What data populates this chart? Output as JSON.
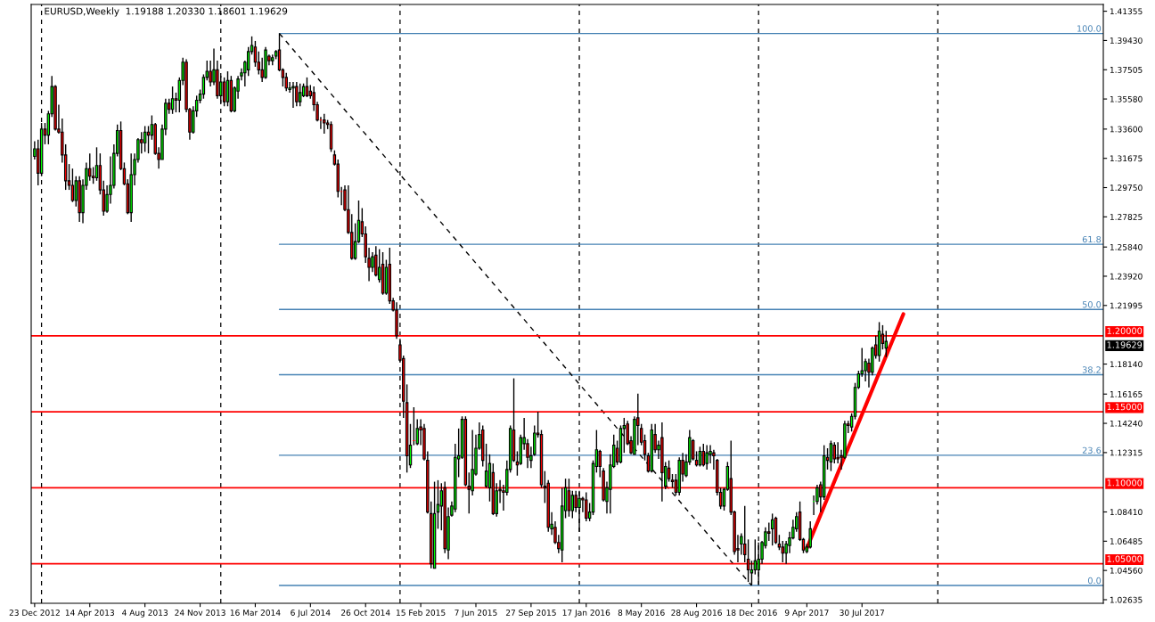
{
  "chart_data": {
    "type": "candlestick",
    "title": "EURUSD,Weekly  1.19188 1.20330 1.18601 1.19629",
    "x": [
      "2012-12-23",
      "2012-12-30",
      "2013-01-06",
      "2013-01-13",
      "2013-01-20",
      "2013-01-27",
      "2013-02-03",
      "2013-02-10",
      "2013-02-17",
      "2013-02-24",
      "2013-03-03",
      "2013-03-10",
      "2013-03-17",
      "2013-03-24",
      "2013-03-31",
      "2013-04-07",
      "2013-04-14",
      "2013-04-21",
      "2013-04-28",
      "2013-05-05",
      "2013-05-12",
      "2013-05-19",
      "2013-05-26",
      "2013-06-02",
      "2013-06-09",
      "2013-06-16",
      "2013-06-23",
      "2013-06-30",
      "2013-07-07",
      "2013-07-14",
      "2013-07-21",
      "2013-07-28",
      "2013-08-04",
      "2013-08-11",
      "2013-08-18",
      "2013-08-25",
      "2013-09-01",
      "2013-09-08",
      "2013-09-15",
      "2013-09-22",
      "2013-09-29",
      "2013-10-06",
      "2013-10-13",
      "2013-10-20",
      "2013-10-27",
      "2013-11-03",
      "2013-11-10",
      "2013-11-17",
      "2013-11-24",
      "2013-12-01",
      "2013-12-08",
      "2013-12-15",
      "2013-12-22",
      "2013-12-29",
      "2014-01-05",
      "2014-01-12",
      "2014-01-19",
      "2014-01-26",
      "2014-02-02",
      "2014-02-09",
      "2014-02-16",
      "2014-02-23",
      "2014-03-02",
      "2014-03-09",
      "2014-03-16",
      "2014-03-23",
      "2014-03-30",
      "2014-04-06",
      "2014-04-13",
      "2014-04-20",
      "2014-04-27",
      "2014-05-04",
      "2014-05-11",
      "2014-05-18",
      "2014-05-25",
      "2014-06-01",
      "2014-06-08",
      "2014-06-15",
      "2014-06-22",
      "2014-06-29",
      "2014-07-06",
      "2014-07-13",
      "2014-07-20",
      "2014-07-27",
      "2014-08-03",
      "2014-08-10",
      "2014-08-17",
      "2014-08-24",
      "2014-08-31",
      "2014-09-07",
      "2014-09-14",
      "2014-09-21",
      "2014-09-28",
      "2014-10-05",
      "2014-10-12",
      "2014-10-19",
      "2014-10-26",
      "2014-11-02",
      "2014-11-09",
      "2014-11-16",
      "2014-11-23",
      "2014-11-30",
      "2014-12-07",
      "2014-12-14",
      "2014-12-21",
      "2014-12-28",
      "2015-01-04",
      "2015-01-11",
      "2015-01-18",
      "2015-01-25",
      "2015-02-01",
      "2015-02-08",
      "2015-02-15",
      "2015-02-22",
      "2015-03-01",
      "2015-03-08",
      "2015-03-15",
      "2015-03-22",
      "2015-03-29",
      "2015-04-05",
      "2015-04-12",
      "2015-04-19",
      "2015-04-26",
      "2015-05-03",
      "2015-05-10",
      "2015-05-17",
      "2015-05-24",
      "2015-05-31",
      "2015-06-07",
      "2015-06-14",
      "2015-06-21",
      "2015-06-28",
      "2015-07-05",
      "2015-07-12",
      "2015-07-19",
      "2015-07-26",
      "2015-08-02",
      "2015-08-09",
      "2015-08-16",
      "2015-08-23",
      "2015-08-30",
      "2015-09-06",
      "2015-09-13",
      "2015-09-20",
      "2015-09-27",
      "2015-10-04",
      "2015-10-11",
      "2015-10-18",
      "2015-10-25",
      "2015-11-01",
      "2015-11-08",
      "2015-11-15",
      "2015-11-22",
      "2015-11-29",
      "2015-12-06",
      "2015-12-13",
      "2015-12-20",
      "2015-12-27",
      "2016-01-03",
      "2016-01-10",
      "2016-01-17",
      "2016-01-24",
      "2016-01-31",
      "2016-02-07",
      "2016-02-14",
      "2016-02-21",
      "2016-02-28",
      "2016-03-06",
      "2016-03-13",
      "2016-03-20",
      "2016-03-27",
      "2016-04-03",
      "2016-04-10",
      "2016-04-17",
      "2016-04-24",
      "2016-05-01",
      "2016-05-08",
      "2016-05-15",
      "2016-05-22",
      "2016-05-29",
      "2016-06-05",
      "2016-06-12",
      "2016-06-19",
      "2016-06-26",
      "2016-07-03",
      "2016-07-10",
      "2016-07-17",
      "2016-07-24",
      "2016-07-31",
      "2016-08-07",
      "2016-08-14",
      "2016-08-21",
      "2016-08-28",
      "2016-09-04",
      "2016-09-11",
      "2016-09-18",
      "2016-09-25",
      "2016-10-02",
      "2016-10-09",
      "2016-10-16",
      "2016-10-23",
      "2016-10-30",
      "2016-11-06",
      "2016-11-13",
      "2016-11-20",
      "2016-11-27",
      "2016-12-04",
      "2016-12-11",
      "2016-12-18",
      "2016-12-25",
      "2017-01-01",
      "2017-01-08",
      "2017-01-15",
      "2017-01-22",
      "2017-01-29",
      "2017-02-05",
      "2017-02-12",
      "2017-02-19",
      "2017-02-26",
      "2017-03-05",
      "2017-03-12",
      "2017-03-19",
      "2017-03-26",
      "2017-04-02",
      "2017-04-09",
      "2017-04-16",
      "2017-04-23",
      "2017-04-30",
      "2017-05-07",
      "2017-05-14",
      "2017-05-21",
      "2017-05-28",
      "2017-06-04",
      "2017-06-11",
      "2017-06-18",
      "2017-06-25",
      "2017-07-02",
      "2017-07-09",
      "2017-07-16",
      "2017-07-23",
      "2017-07-30",
      "2017-08-06",
      "2017-08-13",
      "2017-08-20",
      "2017-08-27",
      "2017-09-03",
      "2017-09-10",
      "2017-09-17"
    ],
    "ohlc": [
      [
        1.318,
        1.328,
        1.316,
        1.323
      ],
      [
        1.323,
        1.329,
        1.299,
        1.307
      ],
      [
        1.307,
        1.34,
        1.305,
        1.336
      ],
      [
        1.336,
        1.34,
        1.326,
        1.332
      ],
      [
        1.332,
        1.348,
        1.326,
        1.346
      ],
      [
        1.346,
        1.371,
        1.344,
        1.364
      ],
      [
        1.364,
        1.365,
        1.335,
        1.336
      ],
      [
        1.336,
        1.352,
        1.333,
        1.334
      ],
      [
        1.334,
        1.343,
        1.314,
        1.319
      ],
      [
        1.319,
        1.326,
        1.296,
        1.302
      ],
      [
        1.302,
        1.313,
        1.296,
        1.299
      ],
      [
        1.299,
        1.31,
        1.288,
        1.289
      ],
      [
        1.289,
        1.305,
        1.285,
        1.302
      ],
      [
        1.302,
        1.305,
        1.275,
        1.281
      ],
      [
        1.281,
        1.303,
        1.274,
        1.299
      ],
      [
        1.299,
        1.314,
        1.296,
        1.31
      ],
      [
        1.31,
        1.32,
        1.302,
        1.305
      ],
      [
        1.305,
        1.311,
        1.3,
        1.304
      ],
      [
        1.304,
        1.324,
        1.302,
        1.312
      ],
      [
        1.312,
        1.32,
        1.293,
        1.296
      ],
      [
        1.296,
        1.302,
        1.279,
        1.282
      ],
      [
        1.282,
        1.299,
        1.281,
        1.293
      ],
      [
        1.293,
        1.318,
        1.287,
        1.299
      ],
      [
        1.299,
        1.326,
        1.297,
        1.32
      ],
      [
        1.32,
        1.339,
        1.318,
        1.335
      ],
      [
        1.335,
        1.341,
        1.309,
        1.31
      ],
      [
        1.31,
        1.314,
        1.299,
        1.3
      ],
      [
        1.3,
        1.303,
        1.28,
        1.281
      ],
      [
        1.281,
        1.32,
        1.275,
        1.306
      ],
      [
        1.306,
        1.32,
        1.299,
        1.316
      ],
      [
        1.316,
        1.33,
        1.314,
        1.329
      ],
      [
        1.329,
        1.334,
        1.32,
        1.327
      ],
      [
        1.327,
        1.338,
        1.321,
        1.334
      ],
      [
        1.334,
        1.338,
        1.32,
        1.332
      ],
      [
        1.332,
        1.345,
        1.329,
        1.339
      ],
      [
        1.339,
        1.34,
        1.319,
        1.32
      ],
      [
        1.32,
        1.324,
        1.31,
        1.316
      ],
      [
        1.316,
        1.339,
        1.316,
        1.336
      ],
      [
        1.336,
        1.356,
        1.332,
        1.353
      ],
      [
        1.353,
        1.356,
        1.346,
        1.349
      ],
      [
        1.349,
        1.364,
        1.346,
        1.356
      ],
      [
        1.356,
        1.36,
        1.347,
        1.355
      ],
      [
        1.355,
        1.37,
        1.347,
        1.368
      ],
      [
        1.368,
        1.383,
        1.365,
        1.38
      ],
      [
        1.38,
        1.382,
        1.347,
        1.349
      ],
      [
        1.349,
        1.35,
        1.329,
        1.334
      ],
      [
        1.334,
        1.351,
        1.333,
        1.348
      ],
      [
        1.348,
        1.358,
        1.344,
        1.355
      ],
      [
        1.355,
        1.362,
        1.353,
        1.359
      ],
      [
        1.359,
        1.372,
        1.356,
        1.37
      ],
      [
        1.37,
        1.381,
        1.368,
        1.374
      ],
      [
        1.374,
        1.381,
        1.364,
        1.367
      ],
      [
        1.367,
        1.389,
        1.365,
        1.375
      ],
      [
        1.375,
        1.381,
        1.356,
        1.358
      ],
      [
        1.358,
        1.371,
        1.353,
        1.367
      ],
      [
        1.367,
        1.37,
        1.351,
        1.354
      ],
      [
        1.354,
        1.374,
        1.351,
        1.368
      ],
      [
        1.368,
        1.371,
        1.347,
        1.348
      ],
      [
        1.348,
        1.364,
        1.347,
        1.363
      ],
      [
        1.361,
        1.371,
        1.356,
        1.369
      ],
      [
        1.371,
        1.376,
        1.368,
        1.373
      ],
      [
        1.373,
        1.381,
        1.364,
        1.38
      ],
      [
        1.375,
        1.39,
        1.371,
        1.387
      ],
      [
        1.387,
        1.397,
        1.385,
        1.391
      ],
      [
        1.39,
        1.394,
        1.377,
        1.38
      ],
      [
        1.38,
        1.387,
        1.372,
        1.375
      ],
      [
        1.375,
        1.383,
        1.367,
        1.37
      ],
      [
        1.37,
        1.39,
        1.369,
        1.388
      ],
      [
        1.384,
        1.385,
        1.378,
        1.381
      ],
      [
        1.381,
        1.385,
        1.378,
        1.383
      ],
      [
        1.384,
        1.388,
        1.382,
        1.387
      ],
      [
        1.388,
        1.399,
        1.374,
        1.375
      ],
      [
        1.375,
        1.376,
        1.364,
        1.37
      ],
      [
        1.37,
        1.373,
        1.361,
        1.363
      ],
      [
        1.362,
        1.367,
        1.36,
        1.363
      ],
      [
        1.363,
        1.367,
        1.35,
        1.364
      ],
      [
        1.364,
        1.367,
        1.351,
        1.354
      ],
      [
        1.354,
        1.366,
        1.351,
        1.36
      ],
      [
        1.358,
        1.366,
        1.357,
        1.364
      ],
      [
        1.364,
        1.37,
        1.357,
        1.358
      ],
      [
        1.361,
        1.365,
        1.356,
        1.358
      ],
      [
        1.36,
        1.364,
        1.348,
        1.352
      ],
      [
        1.352,
        1.354,
        1.341,
        1.342
      ],
      [
        1.342,
        1.344,
        1.336,
        1.342
      ],
      [
        1.342,
        1.346,
        1.333,
        1.34
      ],
      [
        1.34,
        1.342,
        1.336,
        1.339
      ],
      [
        1.339,
        1.341,
        1.321,
        1.323
      ],
      [
        1.319,
        1.322,
        1.312,
        1.313
      ],
      [
        1.313,
        1.316,
        1.291,
        1.295
      ],
      [
        1.295,
        1.298,
        1.286,
        1.295
      ],
      [
        1.296,
        1.299,
        1.282,
        1.283
      ],
      [
        1.283,
        1.299,
        1.267,
        1.268
      ],
      [
        1.268,
        1.28,
        1.25,
        1.251
      ],
      [
        1.251,
        1.274,
        1.25,
        1.262
      ],
      [
        1.262,
        1.289,
        1.261,
        1.276
      ],
      [
        1.275,
        1.284,
        1.265,
        1.267
      ],
      [
        1.267,
        1.272,
        1.248,
        1.252
      ],
      [
        1.251,
        1.258,
        1.236,
        1.245
      ],
      [
        1.245,
        1.255,
        1.242,
        1.252
      ],
      [
        1.253,
        1.259,
        1.239,
        1.24
      ],
      [
        1.237,
        1.257,
        1.235,
        1.245
      ],
      [
        1.247,
        1.255,
        1.227,
        1.228
      ],
      [
        1.228,
        1.25,
        1.227,
        1.245
      ],
      [
        1.247,
        1.258,
        1.221,
        1.223
      ],
      [
        1.223,
        1.225,
        1.216,
        1.217
      ],
      [
        1.217,
        1.222,
        1.198,
        1.2
      ],
      [
        1.194,
        1.198,
        1.183,
        1.184
      ],
      [
        1.185,
        1.187,
        1.146,
        1.157
      ],
      [
        1.156,
        1.168,
        1.11,
        1.121
      ],
      [
        1.115,
        1.142,
        1.113,
        1.128
      ],
      [
        1.131,
        1.153,
        1.128,
        1.131
      ],
      [
        1.129,
        1.145,
        1.128,
        1.139
      ],
      [
        1.14,
        1.145,
        1.128,
        1.138
      ],
      [
        1.139,
        1.142,
        1.118,
        1.119
      ],
      [
        1.118,
        1.124,
        1.083,
        1.084
      ],
      [
        1.083,
        1.091,
        1.047,
        1.05
      ],
      [
        1.047,
        1.104,
        1.047,
        1.083
      ],
      [
        1.084,
        1.105,
        1.073,
        1.089
      ],
      [
        1.088,
        1.103,
        1.072,
        1.098
      ],
      [
        1.1,
        1.104,
        1.057,
        1.06
      ],
      [
        1.059,
        1.087,
        1.053,
        1.081
      ],
      [
        1.082,
        1.091,
        1.081,
        1.088
      ],
      [
        1.086,
        1.129,
        1.084,
        1.12
      ],
      [
        1.119,
        1.139,
        1.107,
        1.121
      ],
      [
        1.12,
        1.147,
        1.119,
        1.145
      ],
      [
        1.145,
        1.147,
        1.101,
        1.102
      ],
      [
        1.101,
        1.11,
        1.083,
        1.099
      ],
      [
        1.098,
        1.138,
        1.095,
        1.112
      ],
      [
        1.109,
        1.135,
        1.108,
        1.126
      ],
      [
        1.126,
        1.143,
        1.125,
        1.135
      ],
      [
        1.138,
        1.141,
        1.114,
        1.118
      ],
      [
        1.101,
        1.129,
        1.1,
        1.111
      ],
      [
        1.1,
        1.122,
        1.091,
        1.116
      ],
      [
        1.11,
        1.116,
        1.082,
        1.083
      ],
      [
        1.083,
        1.103,
        1.081,
        1.098
      ],
      [
        1.099,
        1.105,
        1.09,
        1.098
      ],
      [
        1.098,
        1.102,
        1.085,
        1.097
      ],
      [
        1.097,
        1.118,
        1.095,
        1.112
      ],
      [
        1.112,
        1.141,
        1.11,
        1.139
      ],
      [
        1.138,
        1.172,
        1.117,
        1.118
      ],
      [
        1.117,
        1.124,
        1.108,
        1.115
      ],
      [
        1.116,
        1.135,
        1.115,
        1.133
      ],
      [
        1.129,
        1.146,
        1.125,
        1.133
      ],
      [
        1.129,
        1.132,
        1.113,
        1.12
      ],
      [
        1.118,
        1.127,
        1.113,
        1.121
      ],
      [
        1.122,
        1.141,
        1.121,
        1.136
      ],
      [
        1.136,
        1.15,
        1.133,
        1.135
      ],
      [
        1.135,
        1.138,
        1.1,
        1.102
      ],
      [
        1.101,
        1.111,
        1.09,
        1.1
      ],
      [
        1.103,
        1.105,
        1.071,
        1.074
      ],
      [
        1.073,
        1.084,
        1.069,
        1.076
      ],
      [
        1.074,
        1.078,
        1.063,
        1.064
      ],
      [
        1.064,
        1.069,
        1.057,
        1.06
      ],
      [
        1.059,
        1.1,
        1.051,
        1.088
      ],
      [
        1.085,
        1.106,
        1.08,
        1.1
      ],
      [
        1.098,
        1.106,
        1.081,
        1.085
      ],
      [
        1.085,
        1.098,
        1.08,
        1.095
      ],
      [
        1.095,
        1.098,
        1.084,
        1.087
      ],
      [
        1.087,
        1.098,
        1.071,
        1.093
      ],
      [
        1.093,
        1.094,
        1.084,
        1.092
      ],
      [
        1.092,
        1.097,
        1.078,
        1.08
      ],
      [
        1.08,
        1.09,
        1.078,
        1.084
      ],
      [
        1.084,
        1.118,
        1.082,
        1.116
      ],
      [
        1.114,
        1.138,
        1.11,
        1.125
      ],
      [
        1.124,
        1.125,
        1.107,
        1.114
      ],
      [
        1.111,
        1.113,
        1.091,
        1.092
      ],
      [
        1.091,
        1.104,
        1.083,
        1.1
      ],
      [
        1.099,
        1.122,
        1.083,
        1.115
      ],
      [
        1.114,
        1.135,
        1.113,
        1.128
      ],
      [
        1.126,
        1.131,
        1.115,
        1.117
      ],
      [
        1.117,
        1.141,
        1.116,
        1.139
      ],
      [
        1.139,
        1.146,
        1.123,
        1.141
      ],
      [
        1.142,
        1.144,
        1.128,
        1.129
      ],
      [
        1.131,
        1.134,
        1.122,
        1.123
      ],
      [
        1.122,
        1.147,
        1.122,
        1.145
      ],
      [
        1.146,
        1.162,
        1.128,
        1.141
      ],
      [
        1.139,
        1.142,
        1.128,
        1.13
      ],
      [
        1.131,
        1.135,
        1.118,
        1.122
      ],
      [
        1.121,
        1.123,
        1.11,
        1.111
      ],
      [
        1.111,
        1.142,
        1.11,
        1.138
      ],
      [
        1.135,
        1.142,
        1.123,
        1.125
      ],
      [
        1.125,
        1.131,
        1.119,
        1.128
      ],
      [
        1.133,
        1.143,
        1.091,
        1.11
      ],
      [
        1.101,
        1.117,
        1.099,
        1.114
      ],
      [
        1.113,
        1.118,
        1.104,
        1.106
      ],
      [
        1.105,
        1.109,
        1.1,
        1.104
      ],
      [
        1.105,
        1.109,
        1.095,
        1.097
      ],
      [
        1.097,
        1.12,
        1.095,
        1.118
      ],
      [
        1.118,
        1.123,
        1.104,
        1.109
      ],
      [
        1.108,
        1.122,
        1.107,
        1.117
      ],
      [
        1.117,
        1.138,
        1.115,
        1.133
      ],
      [
        1.131,
        1.132,
        1.118,
        1.119
      ],
      [
        1.118,
        1.124,
        1.114,
        1.115
      ],
      [
        1.115,
        1.127,
        1.114,
        1.124
      ],
      [
        1.124,
        1.129,
        1.114,
        1.115
      ],
      [
        1.116,
        1.128,
        1.112,
        1.123
      ],
      [
        1.122,
        1.128,
        1.116,
        1.124
      ],
      [
        1.123,
        1.125,
        1.112,
        1.121
      ],
      [
        1.118,
        1.119,
        1.095,
        1.097
      ],
      [
        1.097,
        1.1,
        1.086,
        1.088
      ],
      [
        1.088,
        1.1,
        1.085,
        1.099
      ],
      [
        1.099,
        1.117,
        1.098,
        1.114
      ],
      [
        1.106,
        1.131,
        1.082,
        1.084
      ],
      [
        1.084,
        1.085,
        1.056,
        1.058
      ],
      [
        1.06,
        1.069,
        1.051,
        1.059
      ],
      [
        1.063,
        1.07,
        1.056,
        1.068
      ],
      [
        1.063,
        1.088,
        1.051,
        1.056
      ],
      [
        1.053,
        1.066,
        1.038,
        1.046
      ],
      [
        1.044,
        1.052,
        1.036,
        1.046
      ],
      [
        1.046,
        1.066,
        1.043,
        1.052
      ],
      [
        1.046,
        1.064,
        1.036,
        1.053
      ],
      [
        1.053,
        1.065,
        1.05,
        1.064
      ],
      [
        1.062,
        1.074,
        1.06,
        1.071
      ],
      [
        1.071,
        1.077,
        1.065,
        1.07
      ],
      [
        1.073,
        1.083,
        1.062,
        1.079
      ],
      [
        1.08,
        1.081,
        1.063,
        1.064
      ],
      [
        1.063,
        1.069,
        1.059,
        1.061
      ],
      [
        1.061,
        1.065,
        1.051,
        1.057
      ],
      [
        1.057,
        1.065,
        1.05,
        1.063
      ],
      [
        1.062,
        1.071,
        1.057,
        1.067
      ],
      [
        1.067,
        1.079,
        1.066,
        1.074
      ],
      [
        1.073,
        1.084,
        1.071,
        1.081
      ],
      [
        1.084,
        1.091,
        1.065,
        1.066
      ],
      [
        1.066,
        1.067,
        1.057,
        1.059
      ],
      [
        1.058,
        1.063,
        1.057,
        1.061
      ],
      [
        1.061,
        1.078,
        1.06,
        1.073
      ],
      [
        1.091,
        1.095,
        1.082,
        1.091
      ],
      [
        1.091,
        1.102,
        1.089,
        1.1
      ],
      [
        1.102,
        1.104,
        1.084,
        1.094
      ],
      [
        1.094,
        1.128,
        1.092,
        1.121
      ],
      [
        1.12,
        1.126,
        1.112,
        1.118
      ],
      [
        1.117,
        1.131,
        1.111,
        1.129
      ],
      [
        1.128,
        1.13,
        1.116,
        1.119
      ],
      [
        1.12,
        1.13,
        1.116,
        1.119
      ],
      [
        1.121,
        1.125,
        1.112,
        1.12
      ],
      [
        1.12,
        1.144,
        1.119,
        1.142
      ],
      [
        1.142,
        1.144,
        1.136,
        1.141
      ],
      [
        1.14,
        1.149,
        1.137,
        1.147
      ],
      [
        1.147,
        1.169,
        1.145,
        1.166
      ],
      [
        1.166,
        1.177,
        1.165,
        1.175
      ],
      [
        1.175,
        1.192,
        1.173,
        1.177
      ],
      [
        1.177,
        1.185,
        1.17,
        1.183
      ],
      [
        1.182,
        1.185,
        1.166,
        1.176
      ],
      [
        1.176,
        1.193,
        1.174,
        1.192
      ],
      [
        1.194,
        1.2,
        1.185,
        1.187
      ],
      [
        1.187,
        1.209,
        1.183,
        1.203
      ],
      [
        1.201,
        1.207,
        1.191,
        1.195
      ],
      [
        1.19188,
        1.2033,
        1.18601,
        1.19629
      ]
    ],
    "colors": [
      "#00ff00",
      "#ff0000",
      "#00ff00",
      "#ff0000",
      "#00ff00",
      "#00ff00",
      "#ff0000",
      "#ff0000",
      "#ff0000",
      "#ff0000",
      "#ff0000",
      "#ff0000",
      "#00ff00",
      "#ff0000",
      "#00ff00",
      "#00ff00",
      "#ff0000",
      "#ff0000",
      "#00ff00",
      "#ff0000",
      "#ff0000",
      "#00ff00",
      "#00ff00",
      "#00ff00",
      "#00ff00",
      "#ff0000",
      "#ff0000",
      "#ff0000",
      "#00ff00",
      "#00ff00",
      "#00ff00",
      "#ff0000",
      "#00ff00",
      "#ff0000",
      "#00ff00",
      "#ff0000",
      "#ff0000",
      "#00ff00",
      "#00ff00",
      "#ff0000",
      "#00ff00",
      "#ff0000",
      "#00ff00",
      "#00ff00",
      "#ff0000",
      "#ff0000",
      "#00ff00",
      "#00ff00",
      "#00ff00",
      "#00ff00",
      "#00ff00",
      "#ff0000",
      "#00ff00",
      "#ff0000",
      "#00ff00",
      "#ff0000",
      "#00ff00",
      "#ff0000",
      "#00ff00",
      "#00ff00",
      "#00ff00",
      "#00ff00",
      "#00ff00",
      "#00ff00",
      "#ff0000",
      "#ff0000",
      "#ff0000",
      "#00ff00",
      "#ff0000",
      "#00ff00",
      "#00ff00",
      "#ff0000",
      "#ff0000",
      "#ff0000",
      "#00ff00",
      "#00ff00",
      "#ff0000",
      "#00ff00",
      "#00ff00",
      "#ff0000",
      "#ff0000",
      "#ff0000",
      "#ff0000",
      "#ff0000",
      "#ff0000",
      "#ff0000",
      "#ff0000",
      "#ff0000",
      "#ff0000",
      "#ff0000",
      "#ff0000",
      "#ff0000",
      "#ff0000",
      "#00ff00",
      "#00ff00",
      "#ff0000",
      "#ff0000",
      "#ff0000",
      "#00ff00",
      "#ff0000",
      "#00ff00",
      "#ff0000",
      "#00ff00",
      "#ff0000",
      "#ff0000",
      "#ff0000",
      "#ff0000",
      "#ff0000",
      "#ff0000",
      "#00ff00",
      "#ff0000",
      "#00ff00",
      "#ff0000",
      "#ff0000",
      "#ff0000",
      "#ff0000",
      "#00ff00",
      "#00ff00",
      "#00ff00",
      "#ff0000",
      "#00ff00",
      "#00ff00",
      "#00ff00",
      "#00ff00",
      "#00ff00",
      "#ff0000",
      "#ff0000",
      "#00ff00",
      "#00ff00",
      "#00ff00",
      "#ff0000",
      "#00ff00",
      "#00ff00",
      "#ff0000",
      "#00ff00",
      "#ff0000",
      "#ff0000",
      "#00ff00",
      "#00ff00",
      "#ff0000",
      "#ff0000",
      "#00ff00",
      "#00ff00",
      "#ff0000",
      "#00ff00",
      "#00ff00",
      "#ff0000",
      "#ff0000",
      "#ff0000",
      "#ff0000",
      "#00ff00",
      "#ff0000",
      "#ff0000",
      "#00ff00",
      "#00ff00",
      "#ff0000",
      "#00ff00",
      "#ff0000",
      "#00ff00",
      "#ff0000",
      "#ff0000",
      "#00ff00",
      "#00ff00",
      "#00ff00",
      "#ff0000",
      "#ff0000",
      "#00ff00",
      "#00ff00",
      "#00ff00",
      "#ff0000",
      "#00ff00",
      "#00ff00",
      "#ff0000",
      "#ff0000",
      "#00ff00",
      "#ff0000",
      "#ff0000",
      "#ff0000",
      "#ff0000",
      "#00ff00",
      "#ff0000",
      "#00ff00",
      "#ff0000",
      "#00ff00",
      "#ff0000",
      "#ff0000",
      "#ff0000",
      "#00ff00",
      "#ff0000",
      "#00ff00",
      "#00ff00",
      "#ff0000",
      "#ff0000",
      "#00ff00",
      "#ff0000",
      "#00ff00",
      "#00ff00",
      "#ff0000",
      "#ff0000",
      "#ff0000",
      "#00ff00",
      "#00ff00",
      "#ff0000",
      "#ff0000",
      "#ff0000",
      "#00ff00",
      "#ff0000",
      "#ff0000",
      "#00ff00",
      "#00ff00",
      "#00ff00",
      "#00ff00",
      "#00ff00",
      "#ff0000",
      "#00ff00",
      "#ff0000",
      "#ff0000",
      "#ff0000",
      "#00ff00",
      "#00ff00",
      "#00ff00",
      "#00ff00",
      "#ff0000",
      "#ff0000",
      "#00ff00",
      "#00ff00",
      "#00ff00",
      "#00ff00",
      "#ff0000",
      "#00ff00",
      "#ff0000",
      "#00ff00",
      "#ff0000",
      "#ff0000",
      "#ff0000",
      "#00ff00",
      "#ff0000",
      "#00ff00",
      "#00ff00",
      "#00ff00",
      "#00ff00",
      "#00ff00",
      "#ff0000",
      "#00ff00",
      "#ff0000",
      "#00ff00",
      "#ff0000",
      "#00ff00"
    ],
    "xlim": [
      "2012-12-16",
      "2018-12-02"
    ],
    "xticks": [
      {
        "value": "2012-12-23",
        "label": "23 Dec 2012"
      },
      {
        "value": "2013-04-14",
        "label": "14 Apr 2013"
      },
      {
        "value": "2013-08-04",
        "label": "4 Aug 2013"
      },
      {
        "value": "2013-11-24",
        "label": "24 Nov 2013"
      },
      {
        "value": "2014-03-16",
        "label": "16 Mar 2014"
      },
      {
        "value": "2014-07-06",
        "label": "6 Jul 2014"
      },
      {
        "value": "2014-10-26",
        "label": "26 Oct 2014"
      },
      {
        "value": "2015-02-15",
        "label": "15 Feb 2015"
      },
      {
        "value": "2015-06-07",
        "label": "7 Jun 2015"
      },
      {
        "value": "2015-09-27",
        "label": "27 Sep 2015"
      },
      {
        "value": "2016-01-17",
        "label": "17 Jan 2016"
      },
      {
        "value": "2016-05-08",
        "label": "8 May 2016"
      },
      {
        "value": "2016-08-28",
        "label": "28 Aug 2016"
      },
      {
        "value": "2016-12-18",
        "label": "18 Dec 2016"
      },
      {
        "value": "2017-04-09",
        "label": "9 Apr 2017"
      },
      {
        "value": "2017-07-30",
        "label": "30 Jul 2017"
      }
    ],
    "ylim": [
      1.024,
      1.418
    ],
    "yticks": [
      1.41355,
      {
        "value": 1.3943,
        "label": "1.39430"
      },
      1.37505,
      {
        "value": 1.3558,
        "label": "1.35580"
      },
      {
        "value": 1.336,
        "label": "1.33600"
      },
      1.31675,
      {
        "value": 1.2975,
        "label": "1.29750"
      },
      1.27825,
      {
        "value": 1.2584,
        "label": "1.25840"
      },
      {
        "value": 1.2392,
        "label": "1.23920"
      },
      1.21995,
      {
        "value": 1.1814,
        "label": "1.18140"
      },
      1.16165,
      {
        "value": 1.1424,
        "label": "1.14240"
      },
      1.12315,
      {
        "value": 1.0841,
        "label": "1.08410"
      },
      1.06485,
      {
        "value": 1.0456,
        "label": "1.04560"
      },
      1.02635
    ],
    "series": [
      {
        "type": "line",
        "name": "100.0",
        "color": "#4682b4",
        "x": [
          "2014-05-04",
          "2018-12-02"
        ],
        "values": [
          1.3989,
          1.3989
        ]
      },
      {
        "type": "line",
        "name": "61.8",
        "color": "#4682b4",
        "x": [
          "2014-05-04",
          "2018-12-02"
        ],
        "values": [
          1.2602,
          1.2602
        ]
      },
      {
        "type": "line",
        "name": "50.0",
        "color": "#4682b4",
        "x": [
          "2014-05-04",
          "2018-12-02"
        ],
        "values": [
          1.2173,
          1.2173
        ]
      },
      {
        "type": "line",
        "name": "38.2",
        "color": "#4682b4",
        "x": [
          "2014-05-04",
          "2018-12-02"
        ],
        "values": [
          1.1744,
          1.1744
        ]
      },
      {
        "type": "line",
        "name": "23.6",
        "color": "#4682b4",
        "x": [
          "2014-05-04",
          "2018-12-02"
        ],
        "values": [
          1.1214,
          1.1214
        ]
      },
      {
        "type": "line",
        "name": "0.0",
        "color": "#4682b4",
        "x": [
          "2014-05-04",
          "2018-12-02"
        ],
        "values": [
          1.0357,
          1.0357
        ]
      },
      {
        "type": "line",
        "color": "#000000",
        "line_style": "dashed",
        "x": [
          "2014-05-04",
          "2016-12-18"
        ],
        "values": [
          1.3989,
          1.0357
        ]
      },
      {
        "type": "line",
        "color": "#ff0000",
        "x": [
          "2017-04-09",
          "2017-10-22"
        ],
        "values": [
          1.0602,
          1.2143
        ]
      }
    ],
    "ref_lines": [
      {
        "axis": "y",
        "value": 1.2,
        "label": "1.20000",
        "color": "#ff0000"
      },
      {
        "axis": "y",
        "value": 1.15,
        "label": "1.15000",
        "color": "#ff0000"
      },
      {
        "axis": "y",
        "value": 1.1,
        "label": "1.10000",
        "color": "#ff0000"
      },
      {
        "axis": "y",
        "value": 1.05,
        "label": "1.05000",
        "color": "#ff0000"
      },
      {
        "axis": "x",
        "value": "2013-01-06",
        "color": "#000000",
        "line_style": "dashed"
      },
      {
        "axis": "x",
        "value": "2014-01-05",
        "color": "#000000",
        "line_style": "dashed"
      },
      {
        "axis": "x",
        "value": "2015-01-04",
        "color": "#000000",
        "line_style": "dashed"
      },
      {
        "axis": "x",
        "value": "2016-01-03",
        "color": "#000000",
        "line_style": "dashed"
      },
      {
        "axis": "x",
        "value": "2017-01-01",
        "color": "#000000",
        "line_style": "dashed"
      },
      {
        "axis": "x",
        "value": "2017-12-31",
        "color": "#000000",
        "line_style": "dashed"
      }
    ],
    "annotations": [
      "1.19629"
    ]
  }
}
